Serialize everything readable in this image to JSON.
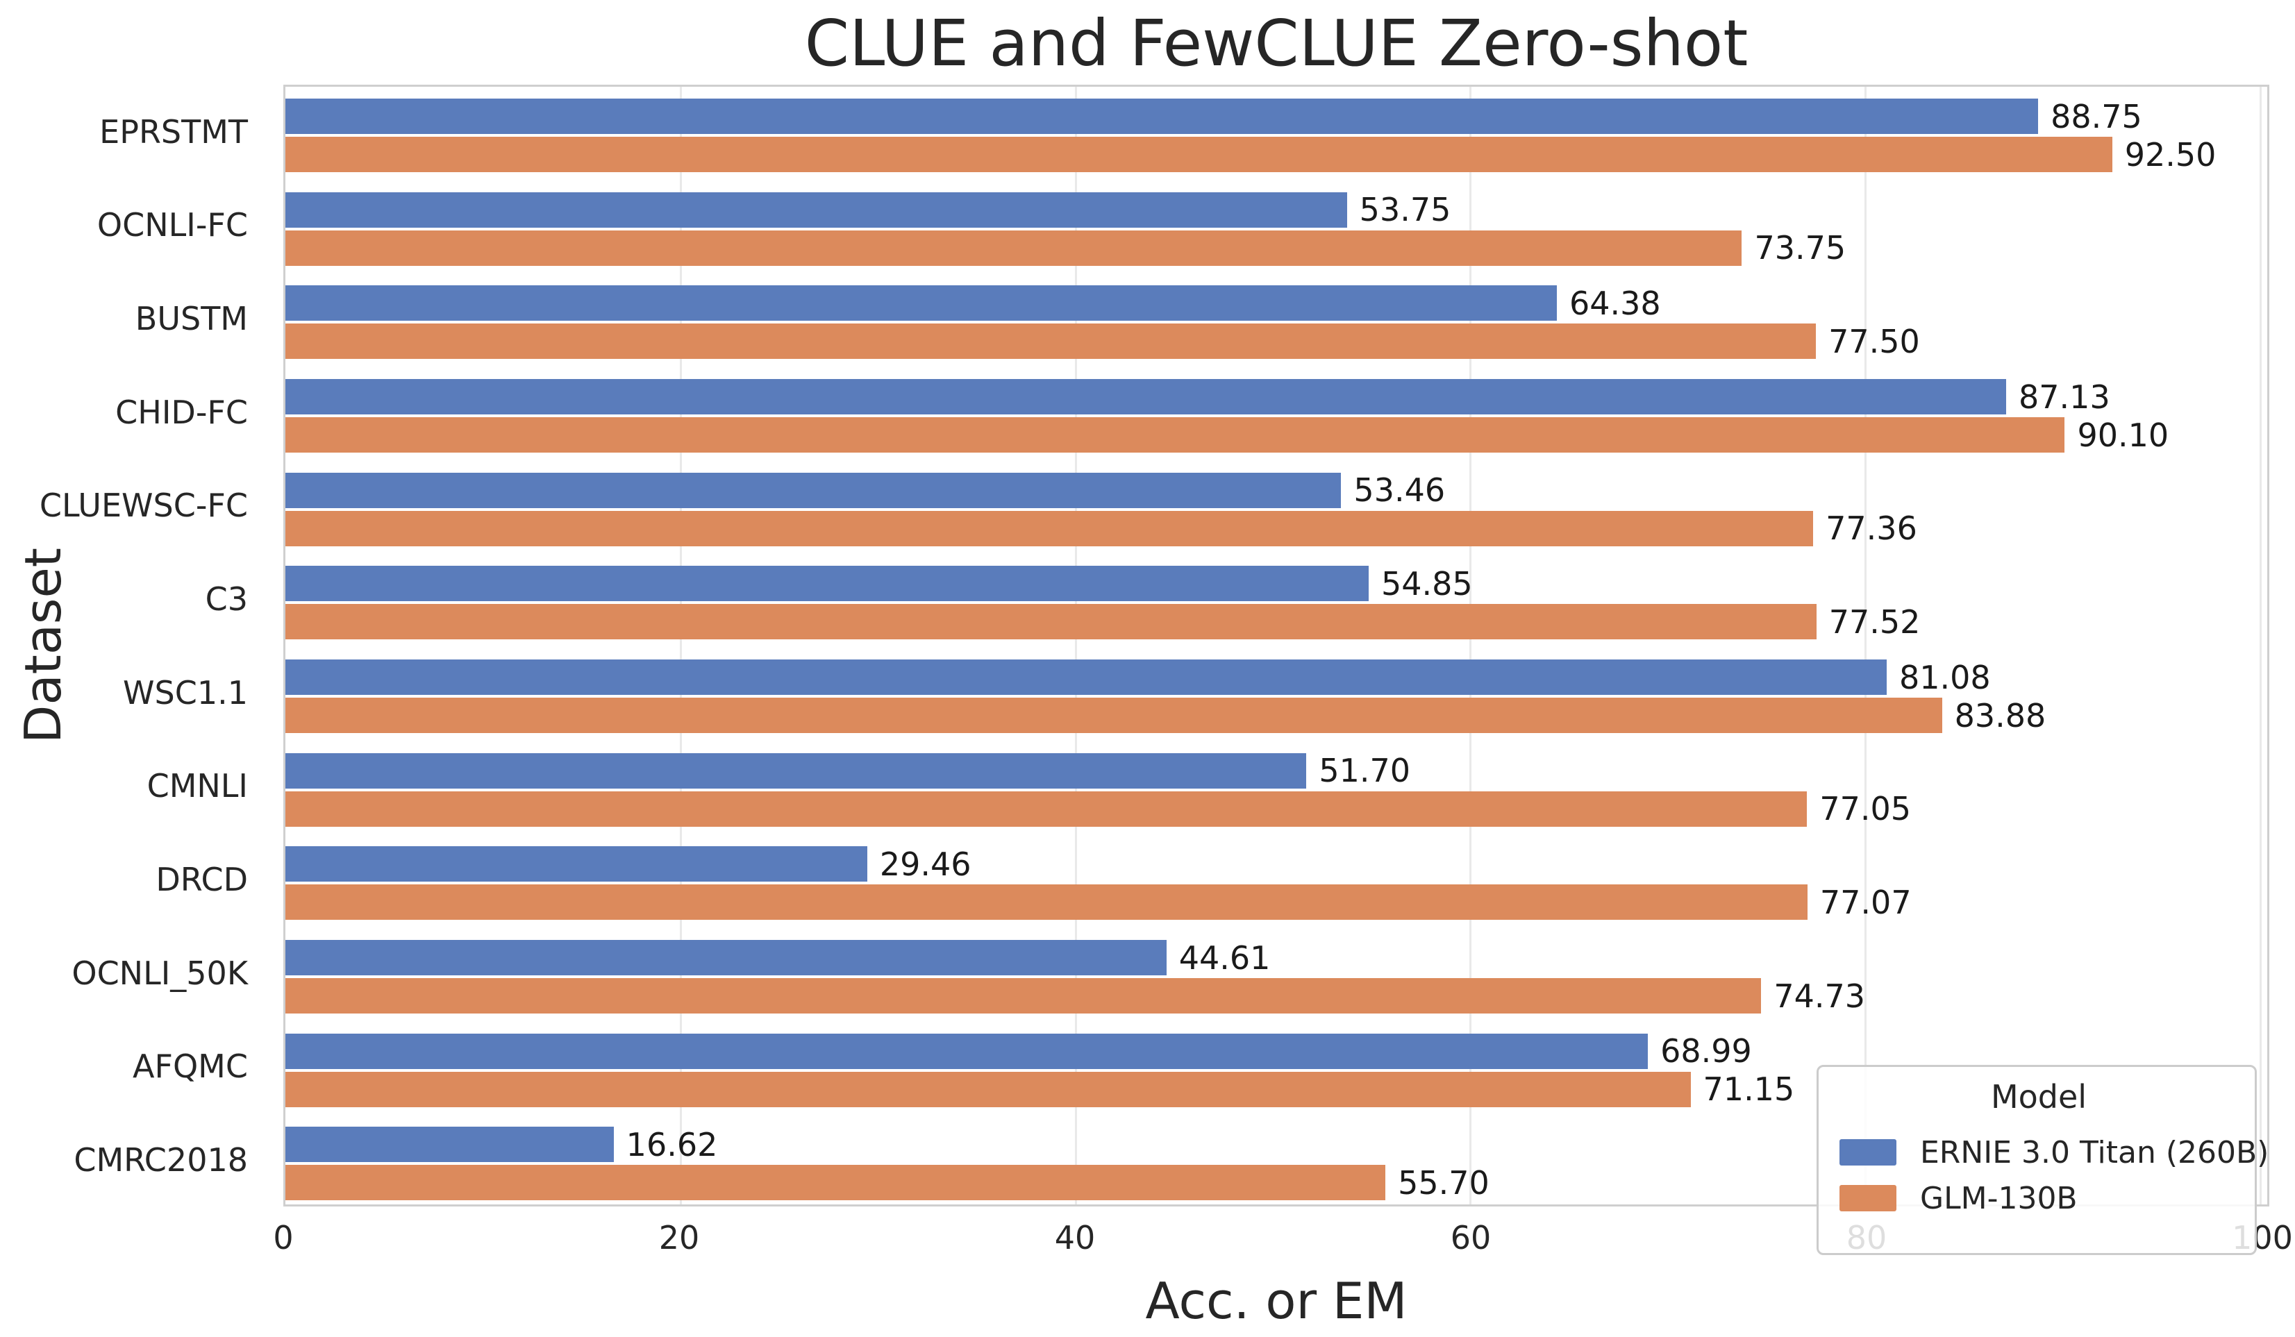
{
  "chart_data": {
    "type": "bar",
    "orientation": "horizontal",
    "title": "CLUE and FewCLUE Zero-shot",
    "xlabel": "Acc. or EM",
    "ylabel": "Dataset",
    "xlim": [
      0,
      100
    ],
    "xticks": [
      0,
      20,
      40,
      60,
      80,
      100
    ],
    "grid": "vertical-light",
    "background": "#ffffff",
    "categories": [
      "EPRSTMT",
      "OCNLI-FC",
      "BUSTM",
      "CHID-FC",
      "CLUEWSC-FC",
      "C3",
      "WSC1.1",
      "CMNLI",
      "DRCD",
      "OCNLI_50K",
      "AFQMC",
      "CMRC2018"
    ],
    "series": [
      {
        "name": "ERNIE 3.0 Titan (260B)",
        "color": "#5a7cbb",
        "values": [
          88.75,
          53.75,
          64.38,
          87.13,
          53.46,
          54.85,
          81.08,
          51.7,
          29.46,
          44.61,
          68.99,
          16.62
        ],
        "labels": [
          "88.75",
          "53.75",
          "64.38",
          "87.13",
          "53.46",
          "54.85",
          "81.08",
          "51.70",
          "29.46",
          "44.61",
          "68.99",
          "16.62"
        ]
      },
      {
        "name": "GLM-130B",
        "color": "#dc8a5c",
        "values": [
          92.5,
          73.75,
          77.5,
          90.1,
          77.36,
          77.52,
          83.88,
          77.05,
          77.07,
          74.73,
          71.15,
          55.7
        ],
        "labels": [
          "92.50",
          "73.75",
          "77.50",
          "90.10",
          "77.36",
          "77.52",
          "83.88",
          "77.05",
          "77.07",
          "74.73",
          "71.15",
          "55.70"
        ]
      }
    ],
    "legend": {
      "title": "Model",
      "position": "lower right"
    }
  }
}
